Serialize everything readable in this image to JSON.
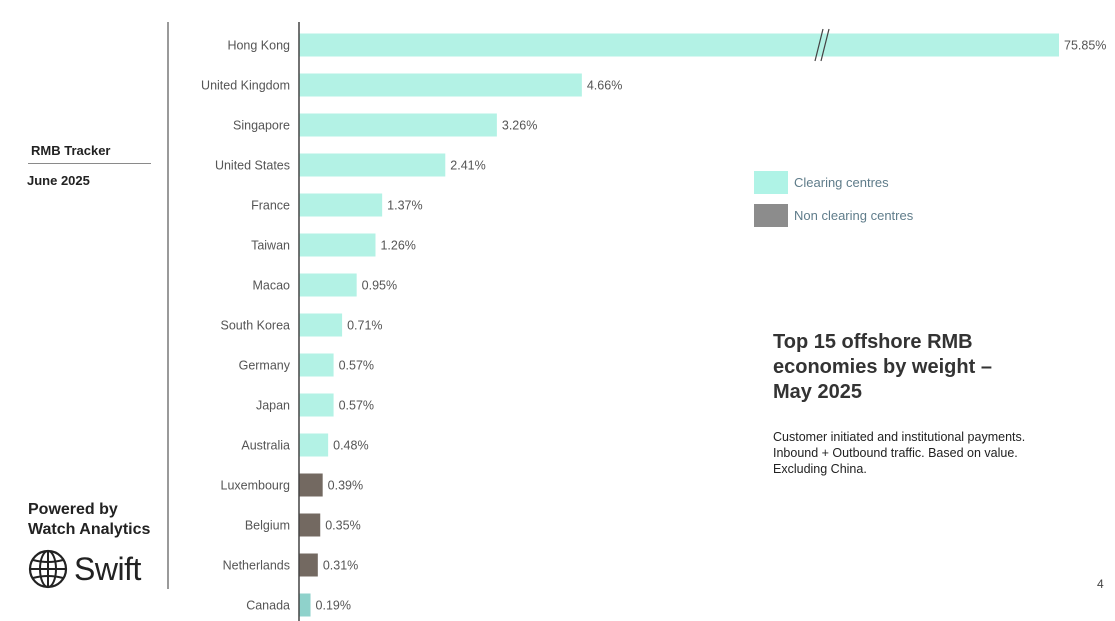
{
  "sidebar": {
    "title": "RMB Tracker",
    "date": "June 2025",
    "powered_line1": "Powered by",
    "powered_line2": "Watch Analytics",
    "logo_text": "Swift",
    "logo_icon": "globe-icon"
  },
  "legend": {
    "items": [
      {
        "label": "Clearing centres",
        "color": "#aff3e6"
      },
      {
        "label": "Non clearing centres",
        "color": "#8c8c8c"
      }
    ]
  },
  "headline": "Top 15 offshore RMB economies by weight – May 2025",
  "subtext": "Customer initiated and institutional payments. Inbound + Outbound traffic. Based on value. Excluding China.",
  "page_number": "4",
  "colors": {
    "clearing": "#b3f2e5",
    "non_clearing": "#736961",
    "canada": "#8fd2cb",
    "axis": "#444444",
    "label_text": "#555555"
  },
  "chart_data": {
    "type": "bar",
    "orientation": "horizontal",
    "axis_break": true,
    "categories": [
      "Hong Kong",
      "United Kingdom",
      "Singapore",
      "United States",
      "France",
      "Taiwan",
      "Macao",
      "South Korea",
      "Germany",
      "Japan",
      "Australia",
      "Luxembourg",
      "Belgium",
      "Netherlands",
      "Canada"
    ],
    "values": [
      75.85,
      4.66,
      3.26,
      2.41,
      1.37,
      1.26,
      0.95,
      0.71,
      0.57,
      0.57,
      0.48,
      0.39,
      0.35,
      0.31,
      0.19
    ],
    "value_labels": [
      "75.85%",
      "4.66%",
      "3.26%",
      "2.41%",
      "1.37%",
      "1.26%",
      "0.95%",
      "0.71%",
      "0.57%",
      "0.57%",
      "0.48%",
      "0.39%",
      "0.35%",
      "0.31%",
      "0.19%"
    ],
    "groups": [
      "clearing",
      "clearing",
      "clearing",
      "clearing",
      "clearing",
      "clearing",
      "clearing",
      "clearing",
      "clearing",
      "clearing",
      "clearing",
      "non_clearing",
      "non_clearing",
      "non_clearing",
      "canada"
    ],
    "series": [
      {
        "name": "Clearing centres"
      },
      {
        "name": "Non clearing centres"
      }
    ],
    "legend_position": "right",
    "grid": false
  }
}
